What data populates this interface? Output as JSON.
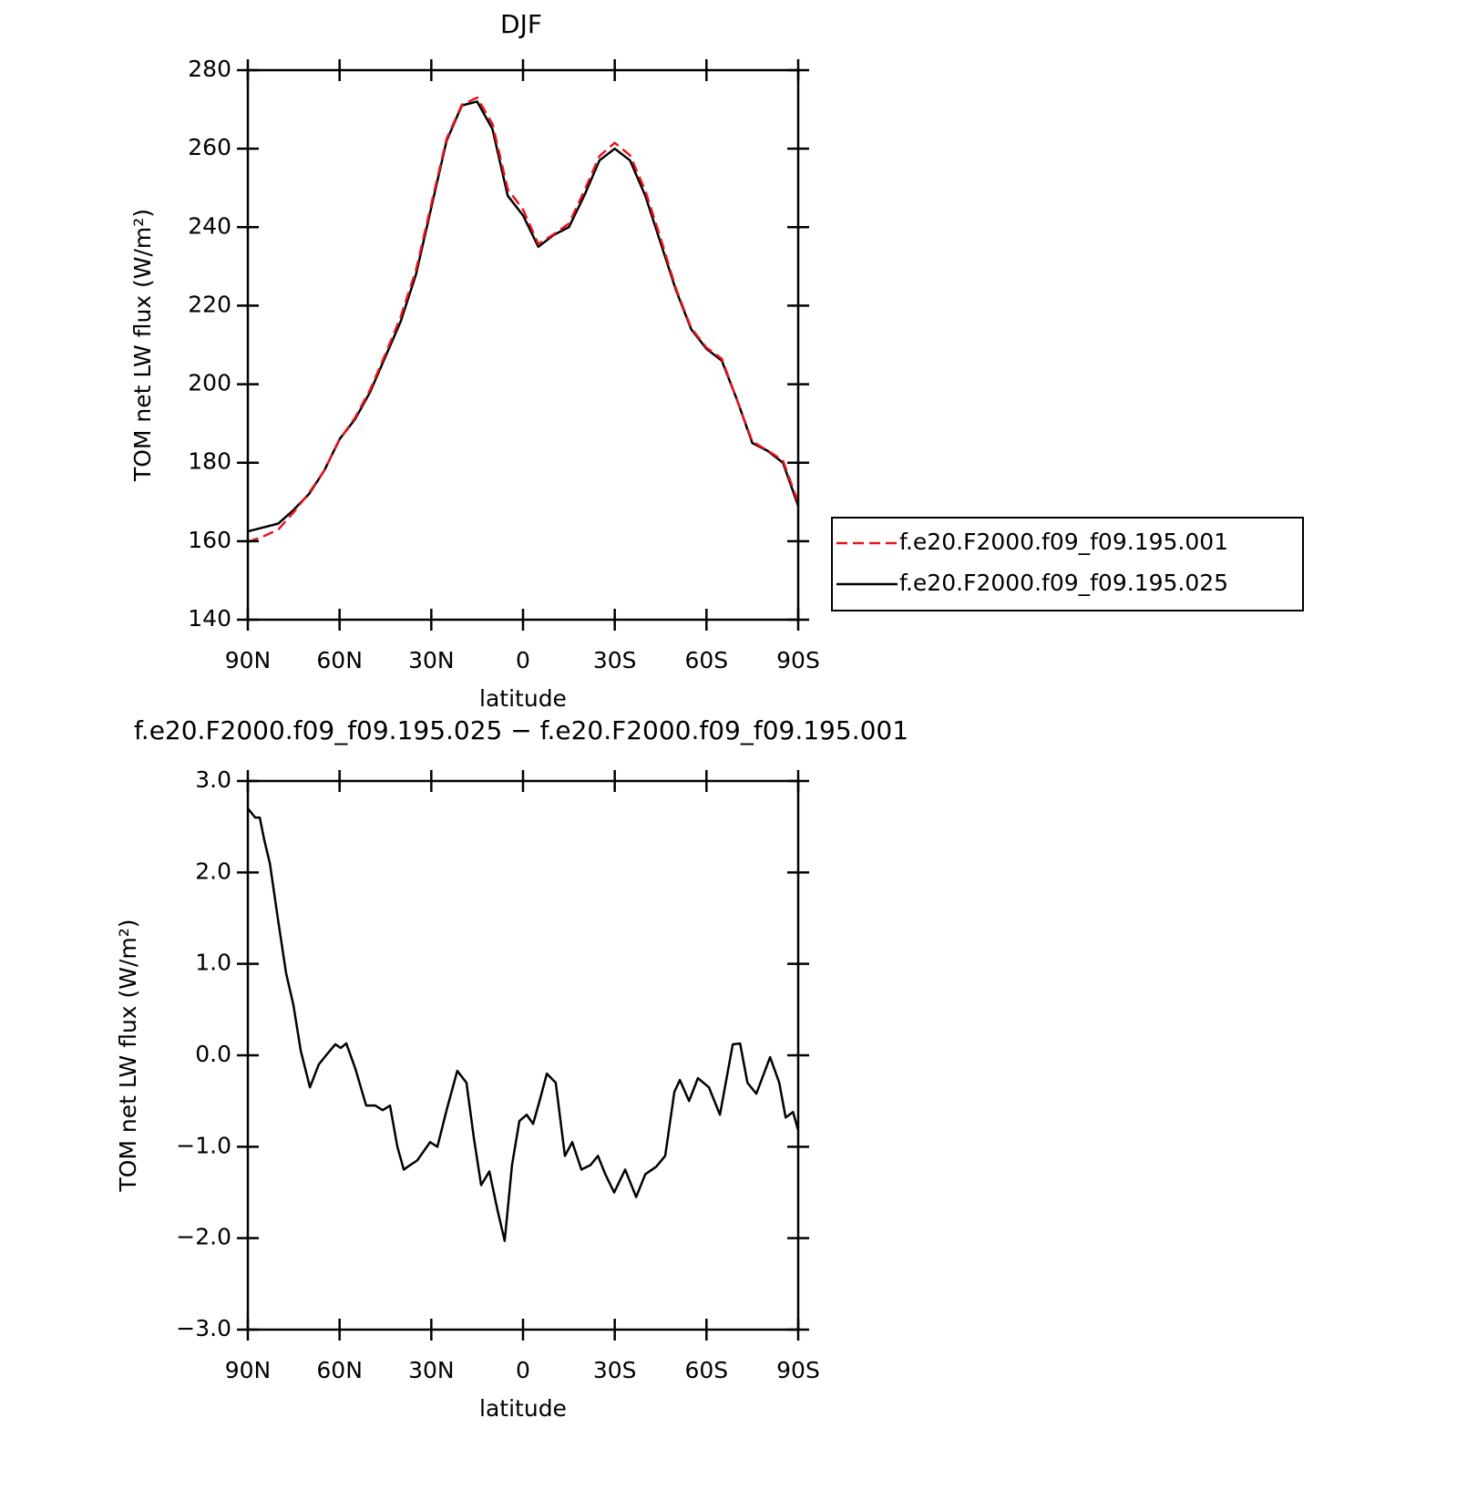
{
  "chart_data": [
    {
      "type": "line",
      "title": "DJF",
      "xlabel": "latitude",
      "ylabel": "TOM net LW flux (W/m²)",
      "x": [
        90,
        85,
        80,
        75,
        70,
        65,
        60,
        55,
        50,
        45,
        40,
        35,
        30,
        25,
        20,
        15,
        10,
        5,
        0,
        -5,
        -10,
        -15,
        -20,
        -25,
        -30,
        -35,
        -40,
        -45,
        -50,
        -55,
        -60,
        -65,
        -70,
        -75,
        -80,
        -85,
        -90
      ],
      "series": [
        {
          "name": "f.e20.F2000.f09_f09.195.001",
          "color": "#e8141c",
          "dashed": true,
          "values": [
            159.8,
            161.2,
            163,
            167.4,
            172.3,
            178,
            185.9,
            191.4,
            198.6,
            207.7,
            217.2,
            229.1,
            245.9,
            262.5,
            271.2,
            273,
            266.3,
            249.7,
            244.5,
            235.7,
            238.2,
            240.9,
            249.2,
            258.1,
            261.5,
            258.3,
            249.3,
            237.2,
            224.4,
            214.3,
            209.3,
            206.5,
            195.9,
            185.4,
            183.1,
            180.6,
            169.8
          ]
        },
        {
          "name": "f.e20.F2000.f09_f09.195.025",
          "color": "#000000",
          "dashed": false,
          "values": [
            162.5,
            163.5,
            164.5,
            168,
            172,
            178,
            186,
            191,
            198,
            207,
            216,
            228,
            245,
            262,
            271,
            272,
            265,
            248,
            243,
            235,
            238,
            240,
            248,
            257,
            260,
            257,
            248,
            236,
            224,
            214,
            209,
            206,
            196,
            185,
            183,
            180,
            169
          ]
        }
      ],
      "xlim": [
        90,
        -90
      ],
      "xticks": [
        {
          "value": 90,
          "label": "90N"
        },
        {
          "value": 60,
          "label": "60N"
        },
        {
          "value": 30,
          "label": "30N"
        },
        0,
        {
          "value": -30,
          "label": "30S"
        },
        {
          "value": -60,
          "label": "60S"
        },
        {
          "value": -90,
          "label": "90S"
        }
      ],
      "ylim": [
        140,
        280
      ],
      "yticks": [
        140,
        160,
        180,
        200,
        220,
        240,
        260,
        280
      ],
      "legend": "right"
    },
    {
      "type": "line",
      "title": "f.e20.F2000.f09_f09.195.025 − f.e20.F2000.f09_f09.195.001",
      "xlabel": "latitude",
      "ylabel": "TOM net LW flux (W/m²)",
      "x": [
        90,
        87.6,
        86.1,
        84.6,
        82.8,
        80.2,
        77.5,
        75.1,
        72.7,
        69.7,
        66.8,
        64.4,
        61.4,
        59.6,
        57.8,
        54.8,
        51.3,
        48.3,
        45.9,
        43.5,
        41.1,
        39,
        36.9,
        34.6,
        32.5,
        30.4,
        28,
        25,
        21.5,
        18.5,
        16.1,
        13.7,
        11,
        8.3,
        6,
        3.6,
        1.2,
        -1.2,
        -3.3,
        -5.4,
        -7.8,
        -10.7,
        -13.7,
        -16.1,
        -19.1,
        -22.1,
        -24.5,
        -26.9,
        -29.8,
        -33.4,
        -37,
        -40,
        -43.5,
        -46.5,
        -49.5,
        -51.3,
        -54.3,
        -57.2,
        -60.8,
        -64.4,
        -68.6,
        -71,
        -73.4,
        -76.3,
        -80.8,
        -83.8,
        -85.9,
        -88.3,
        -90
      ],
      "series": [
        {
          "name": "f.e20.F2000.f09_f09.195.025 − f.e20.F2000.f09_f09.195.001",
          "color": "#000000",
          "dashed": false,
          "values": [
            2.7,
            2.6,
            2.6,
            2.35,
            2.1,
            1.5,
            0.9,
            0.55,
            0.05,
            -0.35,
            -0.1,
            0,
            0.12,
            0.08,
            0.13,
            -0.15,
            -0.55,
            -0.55,
            -0.6,
            -0.55,
            -1,
            -1.25,
            -1.2,
            -1.15,
            -1.05,
            -0.95,
            -1,
            -0.6,
            -0.17,
            -0.3,
            -0.9,
            -1.42,
            -1.27,
            -1.7,
            -2.03,
            -1.2,
            -0.72,
            -0.65,
            -0.75,
            -0.5,
            -0.2,
            -0.3,
            -1.1,
            -0.95,
            -1.25,
            -1.2,
            -1.1,
            -1.3,
            -1.5,
            -1.25,
            -1.55,
            -1.3,
            -1.22,
            -1.1,
            -0.4,
            -0.27,
            -0.5,
            -0.25,
            -0.35,
            -0.65,
            0.12,
            0.13,
            -0.3,
            -0.42,
            -0.02,
            -0.3,
            -0.68,
            -0.62,
            -0.82
          ]
        }
      ],
      "xlim": [
        90,
        -90
      ],
      "xticks": [
        {
          "value": 90,
          "label": "90N"
        },
        {
          "value": 60,
          "label": "60N"
        },
        {
          "value": 30,
          "label": "30N"
        },
        0,
        {
          "value": -30,
          "label": "30S"
        },
        {
          "value": -60,
          "label": "60S"
        },
        {
          "value": -90,
          "label": "90S"
        }
      ],
      "ylim": [
        -3,
        3
      ],
      "yticks": [
        {
          "value": -3,
          "label": "−3.0"
        },
        {
          "value": -2,
          "label": "−2.0"
        },
        {
          "value": -1,
          "label": "−1.0"
        },
        {
          "value": 0,
          "label": "0.0"
        },
        {
          "value": 1,
          "label": "1.0"
        },
        {
          "value": 2,
          "label": "2.0"
        },
        {
          "value": 3,
          "label": "3.0"
        }
      ]
    }
  ]
}
